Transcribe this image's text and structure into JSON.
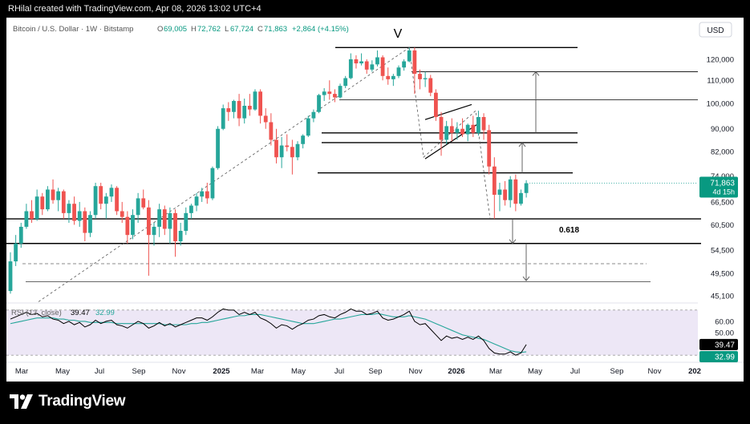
{
  "watermark": "RHilal created with TradingView.com, Apr 08, 2026 13:02 UTC+4",
  "symbol_line": {
    "name": "Bitcoin / U.S. Dollar · 1W · Bitstamp",
    "o_label": "O",
    "o_value": "69,005",
    "h_label": "H",
    "h_value": "72,762",
    "l_label": "L",
    "l_value": "67,724",
    "c_label": "C",
    "c_value": "71,863",
    "change": "+2,864 (+4.15%)"
  },
  "currency_button": "USD",
  "brand": "TradingView",
  "colors": {
    "up": "#26a69a",
    "down": "#ef5350",
    "rsi_line": "#000000",
    "rsi_ma": "#26a69a",
    "rsi_band": "#ede7f6"
  },
  "chart_data": {
    "type": "candlestick",
    "symbol": "Bitcoin / U.S. Dollar",
    "interval": "1W",
    "exchange": "Bitstamp",
    "y_scale": "log",
    "ylim": [
      44000,
      140000
    ],
    "price_axis_ticks": [
      "120,000",
      "110,000",
      "100,000",
      "90,000",
      "82,000",
      "74,000",
      "66,500",
      "60,500",
      "54,500",
      "49,500",
      "45,100"
    ],
    "time_axis_ticks": [
      "Mar",
      "May",
      "Jul",
      "Sep",
      "Nov",
      "2025",
      "Mar",
      "May",
      "Jul",
      "Sep",
      "Nov",
      "2026",
      "Mar",
      "May",
      "Jul",
      "Sep",
      "Nov",
      "202"
    ],
    "last_price": "71,863",
    "countdown": "4d 15h",
    "annotations": [
      {
        "text": "V",
        "kind": "label"
      },
      {
        "text": "0.618",
        "kind": "label"
      }
    ],
    "horizontal_levels": [
      126000,
      114000,
      101500,
      88500,
      85000,
      75000,
      62000,
      56000
    ],
    "dashed_levels": [
      51500
    ],
    "arrows": [
      {
        "from": 88500,
        "to": 114000
      },
      {
        "from": 75000,
        "to": 85000
      },
      {
        "from": 62000,
        "to": 56000
      },
      {
        "from": 56000,
        "to": 48000
      }
    ],
    "candles": [
      [
        46000,
        54000,
        45500,
        52000
      ],
      [
        52000,
        58000,
        51000,
        56000
      ],
      [
        56000,
        61000,
        55000,
        60000
      ],
      [
        60000,
        66000,
        59500,
        64000
      ],
      [
        64000,
        67000,
        61000,
        62000
      ],
      [
        62000,
        70000,
        61500,
        68000
      ],
      [
        68000,
        69000,
        63000,
        64500
      ],
      [
        64500,
        71000,
        64000,
        70000
      ],
      [
        70000,
        73000,
        66000,
        67000
      ],
      [
        67000,
        70500,
        64000,
        69500
      ],
      [
        69500,
        70000,
        62000,
        63500
      ],
      [
        63500,
        67000,
        61000,
        66000
      ],
      [
        66000,
        68000,
        60500,
        61500
      ],
      [
        61500,
        66500,
        60000,
        64000
      ],
      [
        64000,
        65000,
        56500,
        58500
      ],
      [
        58500,
        64000,
        57500,
        63000
      ],
      [
        63000,
        72000,
        62000,
        71000
      ],
      [
        71000,
        72000,
        64500,
        66000
      ],
      [
        66000,
        69000,
        62000,
        68000
      ],
      [
        68000,
        71500,
        66500,
        70500
      ],
      [
        70500,
        71000,
        63000,
        64000
      ],
      [
        64000,
        66500,
        61000,
        62500
      ],
      [
        62500,
        64000,
        56000,
        58000
      ],
      [
        58000,
        64500,
        57000,
        63000
      ],
      [
        63000,
        69000,
        61000,
        67500
      ],
      [
        67500,
        70000,
        64500,
        65000
      ],
      [
        65000,
        67000,
        49000,
        58000
      ],
      [
        58000,
        61000,
        55500,
        60000
      ],
      [
        60000,
        66000,
        57500,
        64500
      ],
      [
        64500,
        65500,
        58000,
        59500
      ],
      [
        59500,
        65000,
        56000,
        63500
      ],
      [
        63500,
        64500,
        53000,
        56500
      ],
      [
        56500,
        61000,
        55500,
        59000
      ],
      [
        59000,
        65000,
        58000,
        63500
      ],
      [
        63500,
        66000,
        62000,
        65500
      ],
      [
        65500,
        69000,
        64000,
        68000
      ],
      [
        68000,
        70500,
        66500,
        69500
      ],
      [
        69500,
        72000,
        66000,
        67500
      ],
      [
        67500,
        77000,
        67000,
        76500
      ],
      [
        76500,
        91000,
        76000,
        90000
      ],
      [
        90000,
        99500,
        89500,
        98000
      ],
      [
        98000,
        100500,
        93000,
        96500
      ],
      [
        96500,
        101500,
        94000,
        101000
      ],
      [
        101000,
        104000,
        91000,
        94000
      ],
      [
        94000,
        102000,
        92000,
        99000
      ],
      [
        99000,
        104000,
        95000,
        97500
      ],
      [
        97500,
        106000,
        97000,
        105000
      ],
      [
        105000,
        106000,
        92000,
        95000
      ],
      [
        95000,
        98000,
        90000,
        92500
      ],
      [
        92500,
        96000,
        84000,
        86000
      ],
      [
        86000,
        90000,
        78000,
        80000
      ],
      [
        80000,
        87000,
        76500,
        84000
      ],
      [
        84000,
        88000,
        82000,
        83500
      ],
      [
        83500,
        86000,
        74500,
        80000
      ],
      [
        80000,
        85500,
        79000,
        84500
      ],
      [
        84500,
        88000,
        83000,
        87500
      ],
      [
        87500,
        95000,
        87000,
        94000
      ],
      [
        94000,
        97500,
        92500,
        96500
      ],
      [
        96500,
        104000,
        96000,
        103500
      ],
      [
        103500,
        106500,
        101000,
        105000
      ],
      [
        105000,
        110000,
        101500,
        104000
      ],
      [
        104000,
        106000,
        100500,
        102500
      ],
      [
        102500,
        108500,
        102000,
        107500
      ],
      [
        107500,
        112000,
        106500,
        111000
      ],
      [
        111000,
        123000,
        110500,
        120000
      ],
      [
        120000,
        122000,
        115500,
        118000
      ],
      [
        118000,
        123000,
        117000,
        119000
      ],
      [
        119000,
        120000,
        113000,
        115000
      ],
      [
        115000,
        119500,
        114000,
        117500
      ],
      [
        117500,
        124500,
        116500,
        121000
      ],
      [
        121000,
        122000,
        110000,
        112000
      ],
      [
        112000,
        116000,
        108000,
        110500
      ],
      [
        110500,
        113000,
        107500,
        112000
      ],
      [
        112000,
        117000,
        111000,
        116000
      ],
      [
        116000,
        120000,
        114500,
        119000
      ],
      [
        119000,
        126000,
        118500,
        124500
      ],
      [
        124500,
        126000,
        104000,
        113000
      ],
      [
        113000,
        115000,
        106000,
        110500
      ],
      [
        110500,
        114000,
        107000,
        111000
      ],
      [
        111000,
        112500,
        103000,
        104500
      ],
      [
        104500,
        106000,
        93000,
        94500
      ],
      [
        94500,
        96500,
        80500,
        86000
      ],
      [
        86000,
        93000,
        84500,
        91000
      ],
      [
        91000,
        94000,
        85500,
        88500
      ],
      [
        88500,
        92500,
        86000,
        90000
      ],
      [
        90000,
        94000,
        87000,
        88000
      ],
      [
        88000,
        92000,
        85500,
        91500
      ],
      [
        91500,
        95000,
        87000,
        88500
      ],
      [
        88500,
        97000,
        87500,
        94500
      ],
      [
        94500,
        96000,
        86000,
        89500
      ],
      [
        89500,
        91500,
        74500,
        77000
      ],
      [
        77000,
        80000,
        62000,
        68500
      ],
      [
        68500,
        72000,
        64000,
        70000
      ],
      [
        70000,
        72500,
        65500,
        67000
      ],
      [
        67000,
        74000,
        65000,
        73000
      ],
      [
        73000,
        74500,
        64000,
        66000
      ],
      [
        66000,
        70000,
        65500,
        69000
      ],
      [
        69005,
        72762,
        67724,
        71863
      ]
    ],
    "rsi": {
      "label": "RSI (13, close)",
      "value": "39.47",
      "ma_value": "32.99",
      "axis_ticks": [
        "60.00",
        "50.00"
      ],
      "upper": 70,
      "lower": 30,
      "ylim": [
        28,
        72
      ],
      "values": [
        62,
        64,
        66,
        68,
        66,
        67,
        64,
        65,
        62,
        61,
        58,
        60,
        57,
        59,
        55,
        57,
        61,
        58,
        60,
        61,
        57,
        56,
        54,
        57,
        60,
        58,
        54,
        56,
        59,
        56,
        58,
        55,
        57,
        59,
        61,
        63,
        63,
        61,
        64,
        68,
        71,
        70,
        70,
        66,
        68,
        66,
        68,
        63,
        61,
        58,
        54,
        57,
        56,
        53,
        56,
        58,
        61,
        62,
        65,
        66,
        64,
        63,
        66,
        68,
        71,
        69,
        69,
        66,
        67,
        69,
        63,
        61,
        62,
        64,
        66,
        69,
        60,
        57,
        58,
        53,
        48,
        43,
        47,
        45,
        46,
        44,
        46,
        44,
        47,
        43,
        36,
        32,
        31,
        31,
        33,
        30,
        32,
        39.47
      ],
      "ma_values": [
        58,
        59,
        60,
        61,
        62,
        63,
        63,
        63,
        63,
        62,
        62,
        61,
        61,
        60,
        60,
        59,
        59,
        59,
        59,
        59,
        58,
        58,
        58,
        58,
        58,
        58,
        58,
        58,
        58,
        57,
        57,
        57,
        57,
        57,
        58,
        58,
        59,
        59,
        60,
        61,
        62,
        63,
        64,
        65,
        65,
        66,
        66,
        66,
        65,
        64,
        63,
        62,
        61,
        60,
        59,
        58,
        58,
        58,
        59,
        60,
        61,
        62,
        62,
        63,
        64,
        65,
        66,
        66,
        66,
        67,
        66,
        65,
        64,
        64,
        64,
        65,
        64,
        63,
        62,
        60,
        58,
        56,
        54,
        52,
        50,
        48,
        47,
        46,
        45,
        44,
        42,
        40,
        38,
        36,
        34,
        33,
        32.5,
        32.99
      ]
    }
  }
}
